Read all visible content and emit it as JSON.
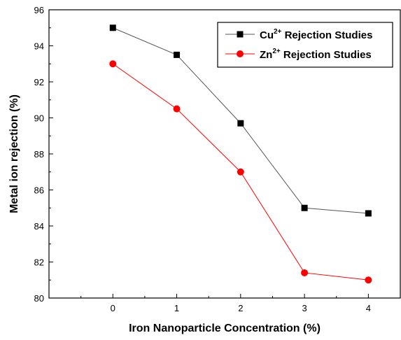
{
  "chart_data": {
    "type": "line",
    "title": "",
    "xlabel": "Iron Nanoparticle Concentration (%)",
    "ylabel": "Metal ion rejection (%)",
    "x": [
      0,
      1,
      2,
      3,
      4
    ],
    "xlim": [
      -1,
      4.5
    ],
    "ylim": [
      80,
      96
    ],
    "xticks": [
      "0",
      "1",
      "2",
      "3",
      "4"
    ],
    "yticks": [
      "80",
      "82",
      "84",
      "86",
      "88",
      "90",
      "92",
      "94",
      "96"
    ],
    "grid": false,
    "legend_position": "top-right",
    "series": [
      {
        "name_base": "Cu",
        "name_sup": "2+",
        "name_rest": " Rejection Studies",
        "color": "#000000",
        "line_color": "#555555",
        "marker": "square",
        "values": [
          95.0,
          93.5,
          89.7,
          85.0,
          84.7
        ]
      },
      {
        "name_base": "Zn",
        "name_sup": "2+",
        "name_rest": " Rejection Studies",
        "color": "#ff0000",
        "line_color": "#ff0000",
        "marker": "circle",
        "values": [
          93.0,
          90.5,
          87.0,
          81.4,
          81.0
        ]
      }
    ]
  }
}
